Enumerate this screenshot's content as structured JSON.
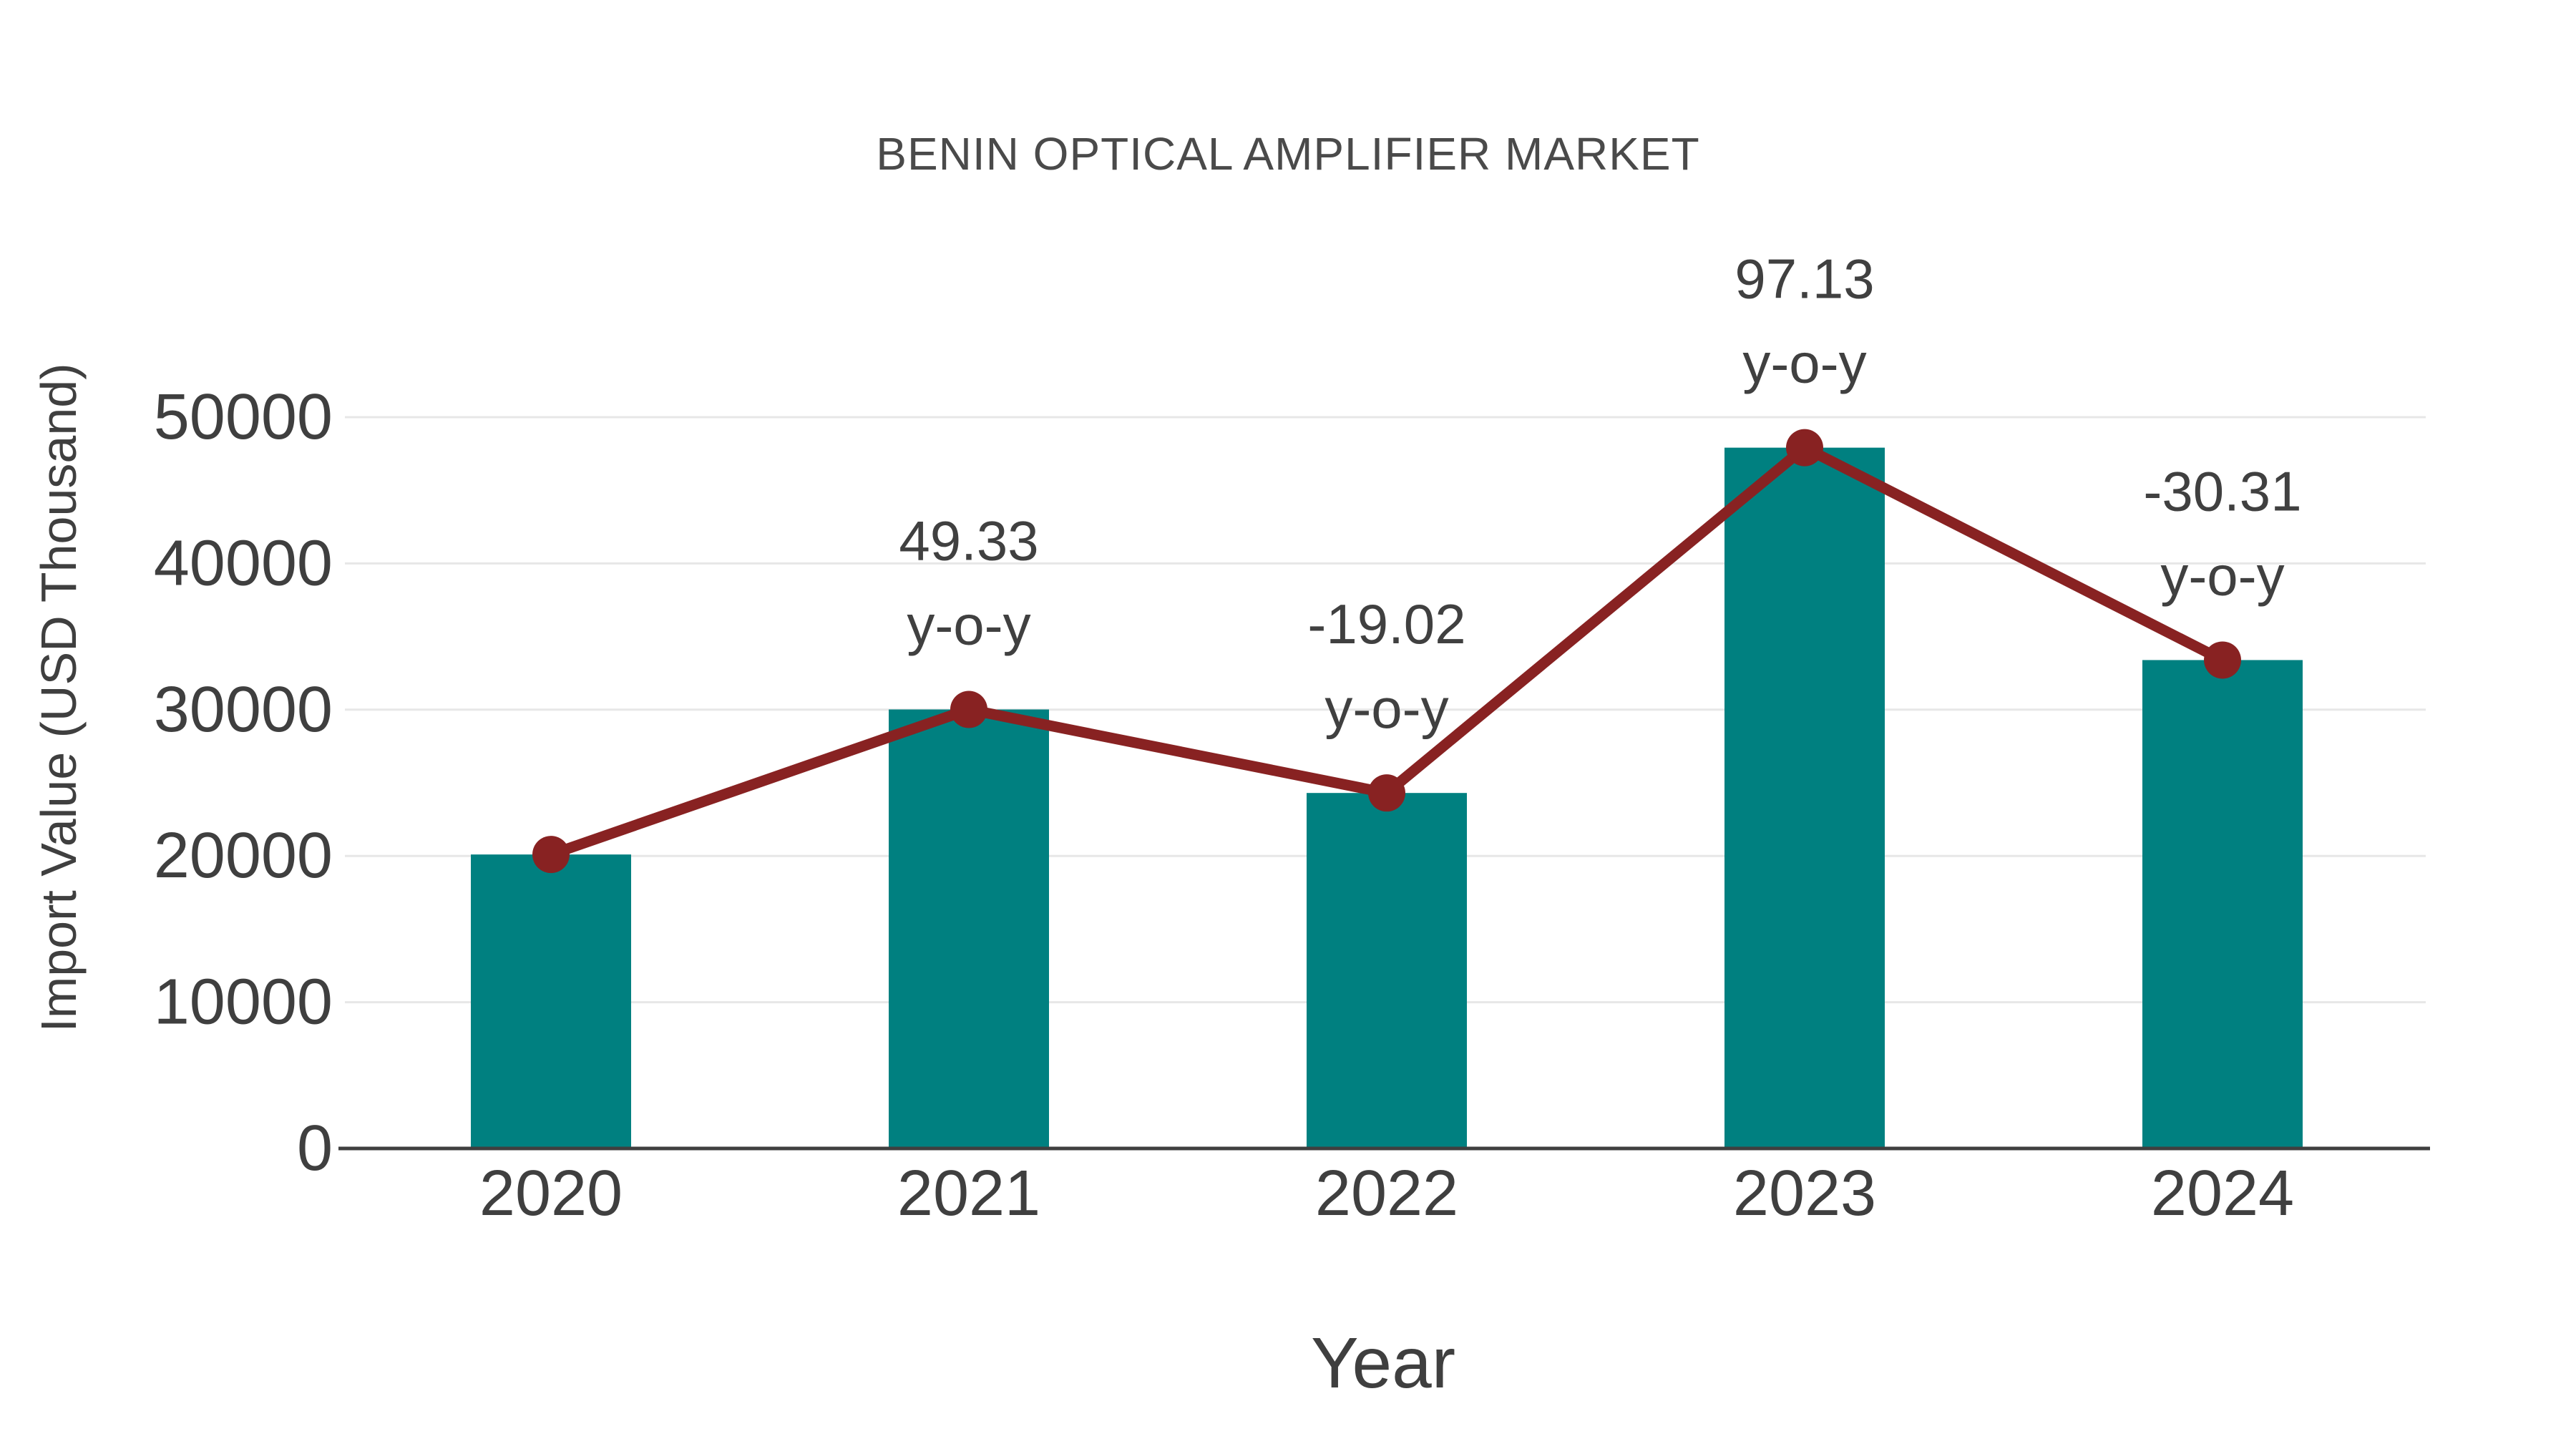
{
  "chart_data": {
    "type": "bar",
    "title": "BENIN OPTICAL AMPLIFIER MARKET",
    "xlabel": "Year",
    "ylabel": "Import Value (USD Thousand)",
    "categories": [
      "2020",
      "2021",
      "2022",
      "2023",
      "2024"
    ],
    "series": [
      {
        "name": "import-value-bars",
        "type": "bar",
        "values": [
          20100,
          30015,
          24306,
          47915,
          33393
        ]
      },
      {
        "name": "yoy-trend-line",
        "type": "line",
        "values": [
          20100,
          30015,
          24306,
          47915,
          33393
        ]
      }
    ],
    "annotations": [
      {
        "category": "2021",
        "value_label": "49.33",
        "suffix_label": "y-o-y"
      },
      {
        "category": "2022",
        "value_label": "-19.02",
        "suffix_label": "y-o-y"
      },
      {
        "category": "2023",
        "value_label": "97.13",
        "suffix_label": "y-o-y"
      },
      {
        "category": "2024",
        "value_label": "-30.31",
        "suffix_label": "y-o-y"
      }
    ],
    "y_ticks": [
      0,
      10000,
      20000,
      30000,
      40000,
      50000
    ],
    "ylim": [
      0,
      50000
    ],
    "grid": "horizontal-only",
    "legend_position": "none"
  },
  "colors": {
    "bar_fill": "#008080",
    "line_stroke": "#882222",
    "marker_fill": "#882222",
    "grid_line": "#e7e7e7",
    "axis_line": "#3f3f3f",
    "tick_text": "#3f3f3f",
    "annotation_text": "#404040",
    "title_text": "#4a4a4a",
    "background": "#ffffff"
  }
}
